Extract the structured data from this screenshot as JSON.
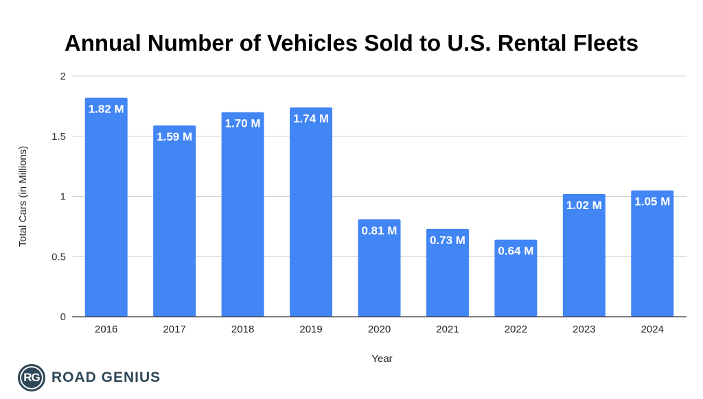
{
  "chart_data": {
    "type": "bar",
    "title": "Annual Number of Vehicles Sold to U.S. Rental Fleets",
    "xlabel": "Year",
    "ylabel": "Total Cars (in Millions)",
    "categories": [
      "2016",
      "2017",
      "2018",
      "2019",
      "2020",
      "2021",
      "2022",
      "2023",
      "2024"
    ],
    "values": [
      1.82,
      1.59,
      1.7,
      1.74,
      0.81,
      0.73,
      0.64,
      1.02,
      1.05
    ],
    "data_labels": [
      "1.82 M",
      "1.59 M",
      "1.70 M",
      "1.74 M",
      "0.81 M",
      "0.73 M",
      "0.64 M",
      "1.02 M",
      "1.05 M"
    ],
    "ylim": [
      0,
      2
    ],
    "yticks": [
      "0",
      "0.5",
      "1",
      "1.5",
      "2"
    ],
    "grid": true,
    "legend": "none",
    "bar_color": "#4285f4"
  },
  "branding": {
    "logo_initials": "RG",
    "logo_text": "ROAD GENIUS"
  }
}
